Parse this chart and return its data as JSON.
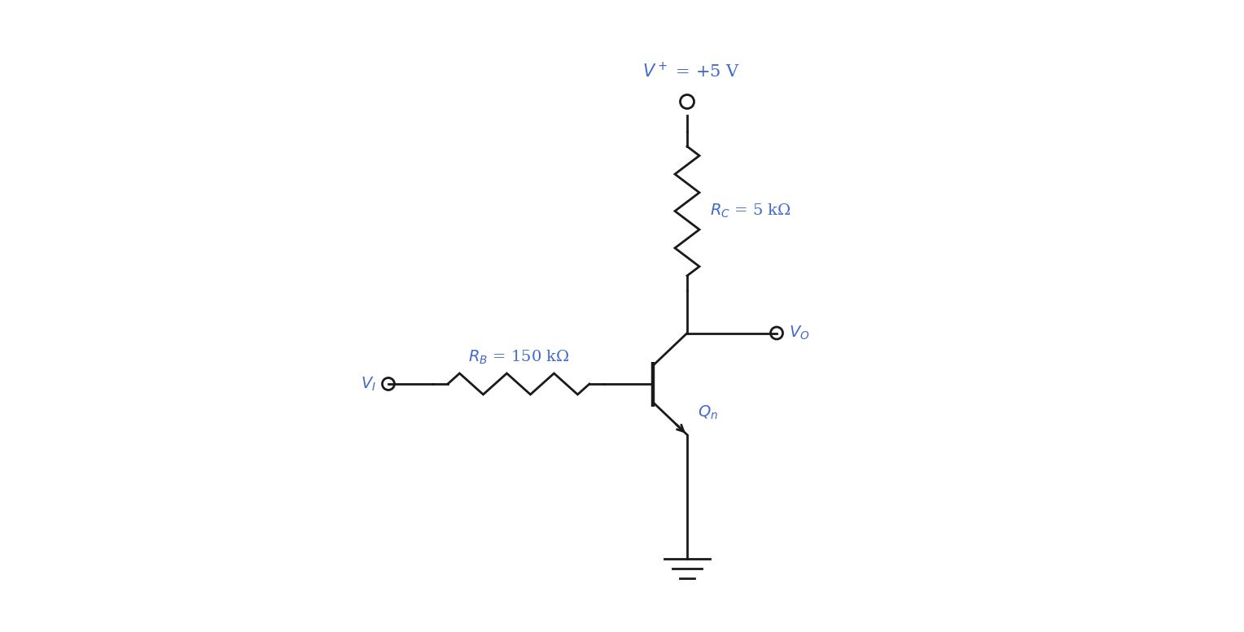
{
  "bg_color": "#ffffff",
  "line_color": "#1a1a1a",
  "label_color": "#4169CD",
  "figsize": [
    15.28,
    7.77
  ],
  "dpi": 100,
  "vplus_label": "$V^+$ = +5 V",
  "rc_label": "$R_C$ = 5 kΩ",
  "rb_label": "$R_B$ = 150 kΩ",
  "vi_label": "$V_I$",
  "vo_label": "$V_O$",
  "qn_label": "$Q_n$"
}
